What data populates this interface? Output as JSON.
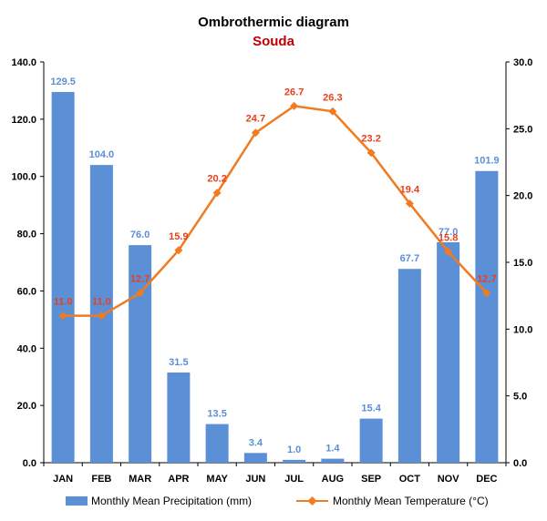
{
  "chart_data": {
    "type": "bar+line",
    "title": "Ombrothermic diagram",
    "subtitle": "Souda",
    "categories": [
      "JAN",
      "FEB",
      "MAR",
      "APR",
      "MAY",
      "JUN",
      "JUL",
      "AUG",
      "SEP",
      "OCT",
      "NOV",
      "DEC"
    ],
    "series": [
      {
        "name": "Monthly Mean Precipitation (mm)",
        "type": "bar",
        "axis": "left",
        "color": "#5b8fd6",
        "label_color": "#5b8fd6",
        "values": [
          129.5,
          104.0,
          76.0,
          31.5,
          13.5,
          3.4,
          1.0,
          1.4,
          15.4,
          67.7,
          77.0,
          101.9
        ],
        "labels": [
          "129.5",
          "104.0",
          "76.0",
          "31.5",
          "13.5",
          "3.4",
          "1.0",
          "1.4",
          "15.4",
          "67.7",
          "77.0",
          "101.9"
        ]
      },
      {
        "name": "Monthly Mean Temperature (°C)",
        "type": "line",
        "axis": "right",
        "color": "#f07b20",
        "label_color": "#e8401c",
        "values": [
          11.0,
          11.0,
          12.7,
          15.9,
          20.2,
          24.7,
          26.7,
          26.3,
          23.2,
          19.4,
          15.8,
          12.7
        ],
        "labels": [
          "11.0",
          "11.0",
          "12.7",
          "15.9",
          "20.2",
          "24.7",
          "26.7",
          "26.3",
          "23.2",
          "19.4",
          "15.8",
          "12.7"
        ]
      }
    ],
    "y_left": {
      "ylim": [
        0,
        140
      ],
      "ticks": [
        "0.0",
        "20.0",
        "40.0",
        "60.0",
        "80.0",
        "100.0",
        "120.0",
        "140.0"
      ]
    },
    "y_right": {
      "ylim": [
        0,
        30
      ],
      "ticks": [
        "0.0",
        "5.0",
        "10.0",
        "15.0",
        "20.0",
        "25.0",
        "30.0"
      ]
    },
    "grid": false,
    "legend_position": "bottom",
    "title_color": "#000000",
    "subtitle_color": "#c00000"
  }
}
